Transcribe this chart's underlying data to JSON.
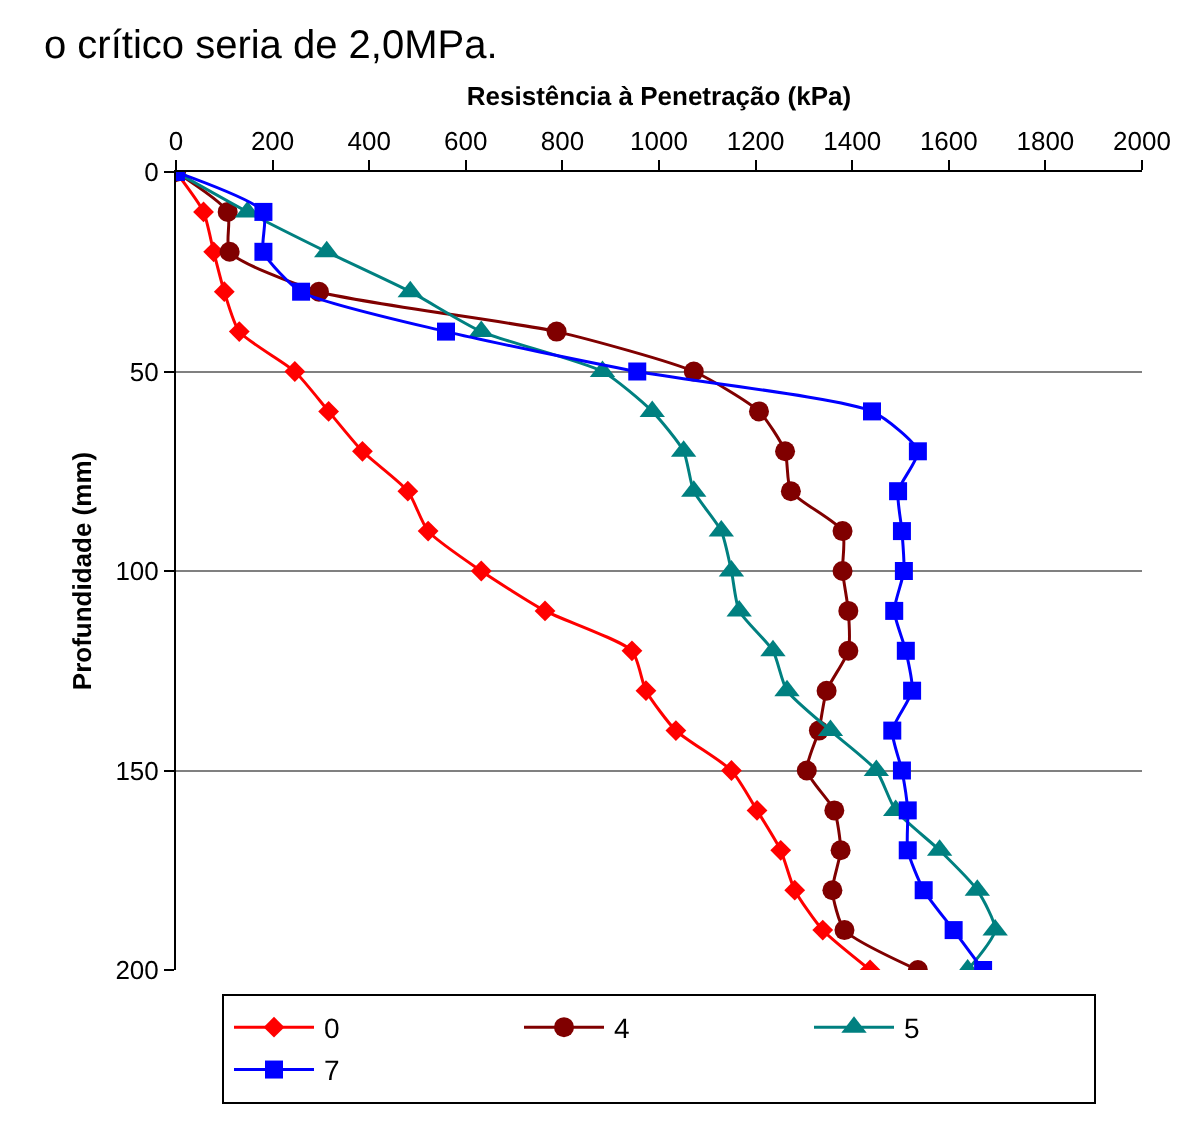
{
  "chart_data": {
    "type": "line",
    "xlabel": "Resistência à Penetração (kPa)",
    "ylabel": "Profundidade (mm)",
    "annotations": [
      "o crítico seria de 2,0MPa."
    ],
    "xlim": [
      0,
      2000
    ],
    "xticks": [
      0,
      200,
      400,
      600,
      800,
      1000,
      1200,
      1400,
      1600,
      1800,
      2000
    ],
    "ylim": [
      200,
      0
    ],
    "yticks": [
      0,
      50,
      100,
      150,
      200
    ],
    "grid": "y",
    "legend": "bottom",
    "series": [
      {
        "name": "0",
        "color": "#ff0000",
        "marker": "diamond",
        "x": [
          0,
          57,
          78,
          100,
          131,
          246,
          316,
          386,
          480,
          522,
          632,
          764,
          944,
          973,
          1035,
          1150,
          1203,
          1252,
          1281,
          1339,
          1437
        ],
        "values": [
          0,
          10,
          20,
          30,
          40,
          50,
          60,
          70,
          80,
          90,
          100,
          110,
          120,
          130,
          140,
          150,
          160,
          170,
          180,
          190,
          200
        ]
      },
      {
        "name": "4",
        "color": "#800000",
        "marker": "circle",
        "x": [
          0,
          107,
          111,
          296,
          788,
          1072,
          1207,
          1261,
          1273,
          1380,
          1380,
          1392,
          1392,
          1347,
          1331,
          1306,
          1363,
          1376,
          1359,
          1384,
          1536
        ],
        "values": [
          0,
          10,
          20,
          30,
          40,
          50,
          60,
          70,
          80,
          90,
          100,
          110,
          120,
          130,
          140,
          150,
          160,
          170,
          180,
          190,
          200
        ]
      },
      {
        "name": "5",
        "color": "#008080",
        "marker": "triangle",
        "x": [
          0,
          148,
          312,
          485,
          632,
          883,
          986,
          1051,
          1072,
          1129,
          1150,
          1166,
          1236,
          1265,
          1355,
          1450,
          1490,
          1581,
          1659,
          1696,
          1639
        ],
        "values": [
          0,
          10,
          20,
          30,
          40,
          50,
          60,
          70,
          80,
          90,
          100,
          110,
          120,
          130,
          140,
          150,
          160,
          170,
          180,
          190,
          200
        ]
      },
      {
        "name": "7",
        "color": "#0000ff",
        "marker": "square",
        "x": [
          0,
          181,
          181,
          259,
          559,
          955,
          1441,
          1536,
          1495,
          1503,
          1507,
          1487,
          1511,
          1524,
          1483,
          1503,
          1515,
          1515,
          1548,
          1610,
          1671
        ],
        "values": [
          0,
          10,
          20,
          30,
          40,
          50,
          60,
          70,
          80,
          90,
          100,
          110,
          120,
          130,
          140,
          150,
          160,
          170,
          180,
          190,
          200
        ]
      }
    ]
  }
}
